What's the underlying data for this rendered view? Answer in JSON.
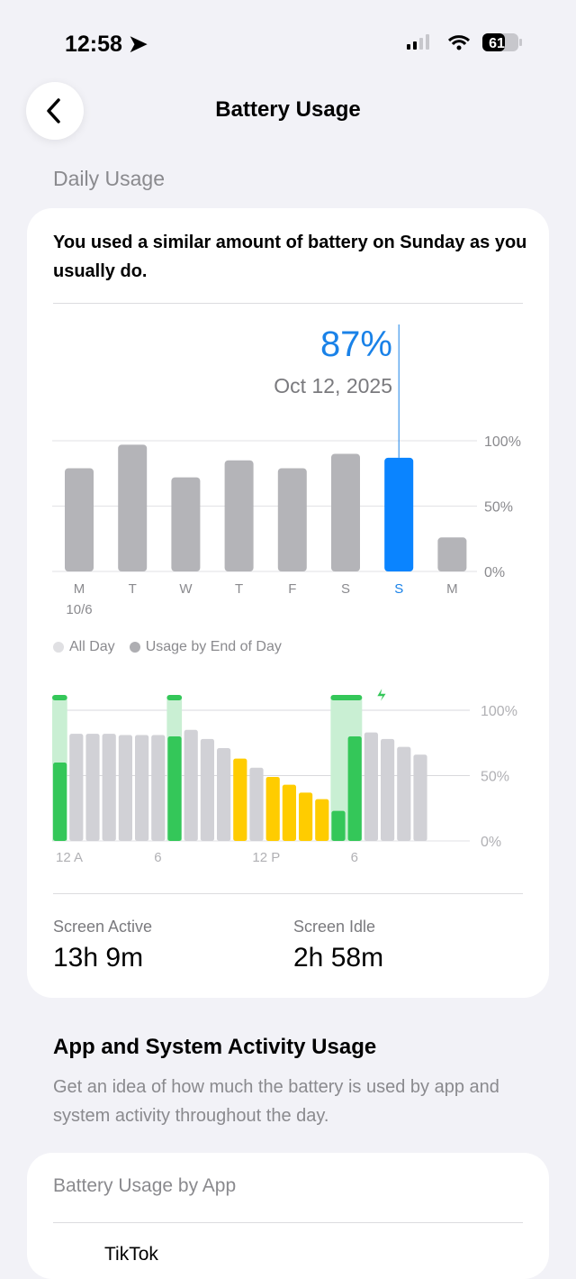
{
  "status": {
    "time": "12:58",
    "battery": "61"
  },
  "header": {
    "title": "Battery Usage"
  },
  "daily": {
    "section": "Daily Usage",
    "summary": "You used a similar amount of battery on Sunday as you usually do.",
    "selected_value": "87%",
    "selected_date": "Oct 12, 2025",
    "legend": [
      "All Day",
      "Usage by End of Day"
    ],
    "screen_active_label": "Screen Active",
    "screen_active": "13h 9m",
    "screen_idle_label": "Screen Idle",
    "screen_idle": "2h 58m"
  },
  "chart_data": [
    {
      "type": "bar",
      "categories": [
        "M",
        "T",
        "W",
        "T",
        "F",
        "S",
        "S",
        "M"
      ],
      "sublabels": [
        "10/6",
        "",
        "",
        "",
        "",
        "",
        "",
        ""
      ],
      "values": [
        79,
        97,
        72,
        85,
        79,
        90,
        87,
        26
      ],
      "selected_index": 6,
      "ylim": [
        0,
        100
      ],
      "yticks": [
        "0%",
        "50%",
        "100%"
      ],
      "grid": true,
      "colors": {
        "default": "#b4b4b8",
        "selected": "#0a84ff"
      }
    },
    {
      "type": "bar",
      "xticks": [
        "12 A",
        "6",
        "12 P",
        "6"
      ],
      "values": [
        60,
        82,
        82,
        82,
        81,
        81,
        81,
        80,
        85,
        78,
        71,
        63,
        56,
        49,
        43,
        37,
        32,
        23,
        80,
        83,
        78,
        72,
        66,
        0
      ],
      "bar_colors": [
        "green",
        "gray",
        "gray",
        "gray",
        "gray",
        "gray",
        "gray",
        "green",
        "gray",
        "gray",
        "gray",
        "yellow",
        "gray",
        "yellow",
        "yellow",
        "yellow",
        "yellow",
        "green",
        "green",
        "gray",
        "gray",
        "gray",
        "gray",
        "gray"
      ],
      "charging_hours": [
        0,
        7,
        17,
        18
      ],
      "ylim": [
        0,
        100
      ],
      "yticks": [
        "0%",
        "50%",
        "100%"
      ],
      "grid": true,
      "colors": {
        "gray": "#d1d1d6",
        "green": "#34c759",
        "yellow": "#ffcc00",
        "charging": "#c9efd3"
      }
    }
  ],
  "activity": {
    "title": "App and System Activity Usage",
    "desc": "Get an idea of how much the battery is used by app and system activity throughout the day."
  },
  "by_app": {
    "title": "Battery Usage by App",
    "first_app": "TikTok"
  }
}
